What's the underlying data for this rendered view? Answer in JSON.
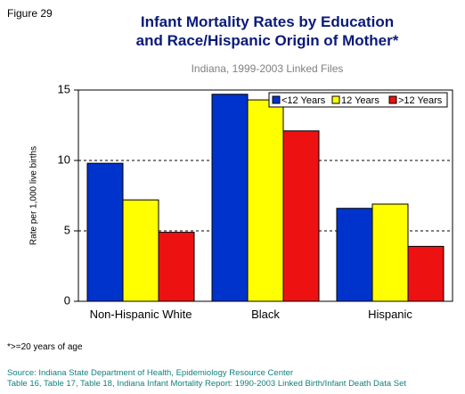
{
  "chart_data": {
    "type": "bar",
    "figure_label": "Figure 29",
    "title": [
      "Infant Mortality Rates by Education",
      "and Race/Hispanic Origin of Mother*"
    ],
    "subtitle": "Indiana, 1999-2003 Linked Files",
    "y_label": "Rate per 1,000 live births",
    "categories": [
      "Non-Hispanic White",
      "Black",
      "Hispanic"
    ],
    "series": [
      {
        "name": "<12 Years",
        "color": "#0033cc",
        "values": [
          9.8,
          14.7,
          6.6
        ]
      },
      {
        "name": "12 Years",
        "color": "#ffff00",
        "values": [
          7.2,
          14.3,
          6.9
        ]
      },
      {
        "name": ">12 Years",
        "color": "#ee1111",
        "values": [
          4.9,
          12.1,
          3.9
        ]
      }
    ],
    "ylim": [
      0,
      15
    ],
    "yticks": [
      0,
      5,
      10,
      15
    ],
    "grid": true,
    "legend": "upper-right",
    "note": "*>=20 years of age",
    "source": [
      "Source: Indiana State Department of Health, Epidemiology Resource Center",
      "Table 16, Table 17, Table 18, Indiana Infant Mortality Report: 1990-2003 Linked Birth/Infant Death Data Set"
    ]
  }
}
